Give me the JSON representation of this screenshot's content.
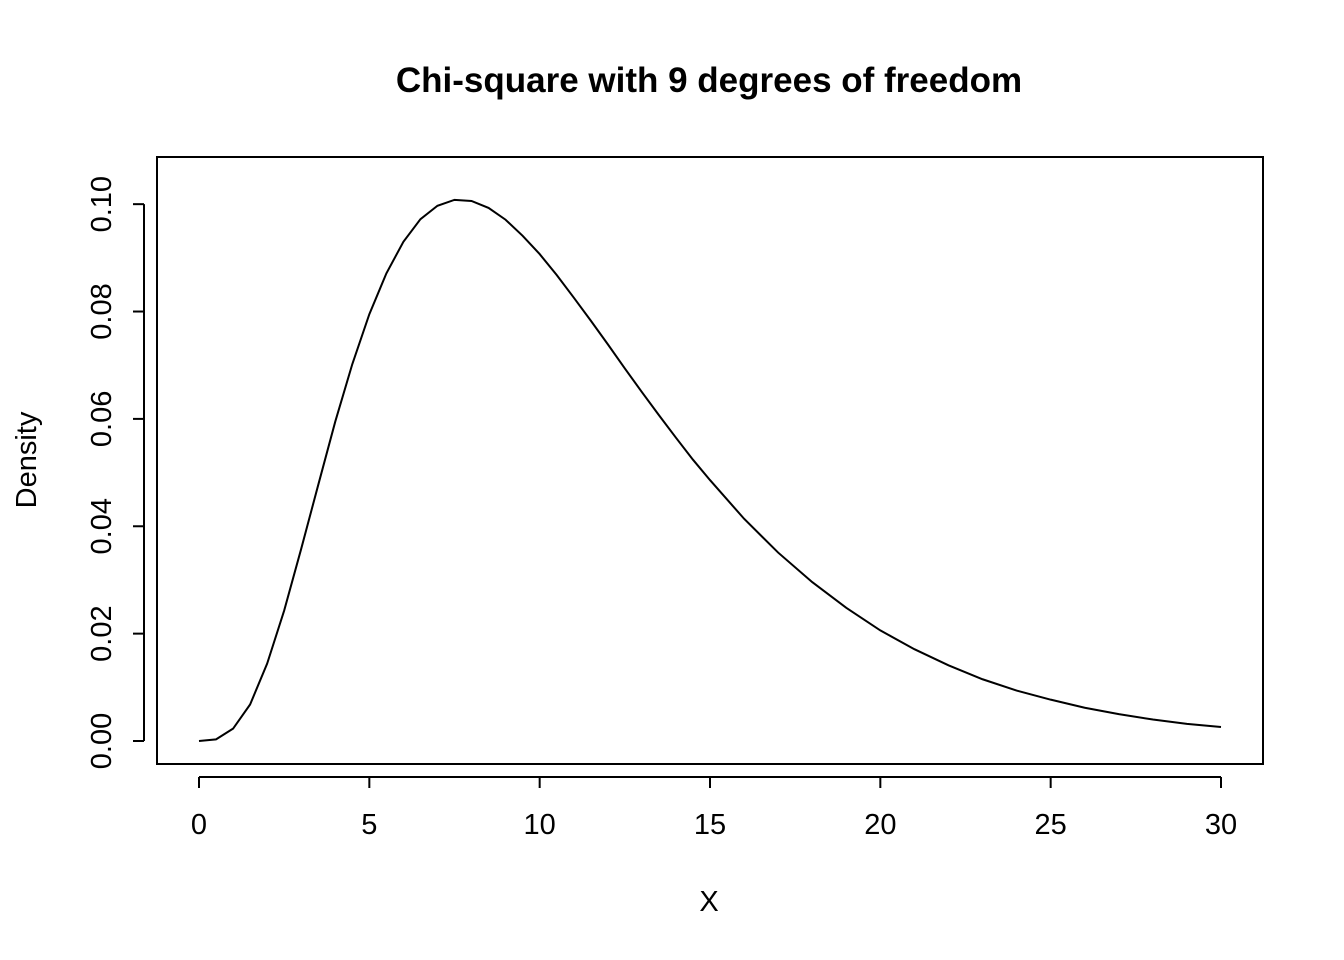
{
  "chart_data": {
    "type": "line",
    "title": "Chi-square with 9 degrees of freedom",
    "xlabel": "X",
    "ylabel": "Density",
    "xlim": [
      0,
      30
    ],
    "ylim": [
      0,
      0.1045
    ],
    "x_ticks": [
      0,
      5,
      10,
      15,
      20,
      25,
      30
    ],
    "x_tick_labels": [
      "0",
      "5",
      "10",
      "15",
      "20",
      "25",
      "30"
    ],
    "y_ticks": [
      0.0,
      0.02,
      0.04,
      0.06,
      0.08,
      0.1
    ],
    "y_tick_labels": [
      "0.00",
      "0.02",
      "0.04",
      "0.06",
      "0.08",
      "0.10"
    ],
    "grid": false,
    "legend": "none",
    "line_color": "#000000",
    "series": [
      {
        "x": [
          0,
          0.5,
          1,
          1.5,
          2,
          2.5,
          3,
          3.5,
          4,
          4.5,
          5,
          5.5,
          6,
          6.5,
          7,
          7.5,
          8,
          8.5,
          9,
          9.5,
          10,
          10.5,
          11,
          11.5,
          12,
          12.5,
          13,
          13.5,
          14,
          14.5,
          15,
          16,
          17,
          18,
          19,
          20,
          21,
          22,
          23,
          24,
          25,
          26,
          27,
          28,
          29,
          30
        ],
        "values": [
          0,
          0.0003,
          0.0023,
          0.0068,
          0.0144,
          0.0243,
          0.0358,
          0.0477,
          0.0595,
          0.0702,
          0.0795,
          0.0871,
          0.093,
          0.0972,
          0.0997,
          0.1008,
          0.1006,
          0.0993,
          0.0971,
          0.0941,
          0.0907,
          0.0868,
          0.0826,
          0.0783,
          0.0739,
          0.0694,
          0.065,
          0.0607,
          0.0565,
          0.0524,
          0.0486,
          0.0414,
          0.0351,
          0.0296,
          0.0248,
          0.0206,
          0.0171,
          0.0141,
          0.0115,
          0.0094,
          0.0077,
          0.0062,
          0.005,
          0.004,
          0.0032,
          0.0026
        ]
      }
    ]
  }
}
